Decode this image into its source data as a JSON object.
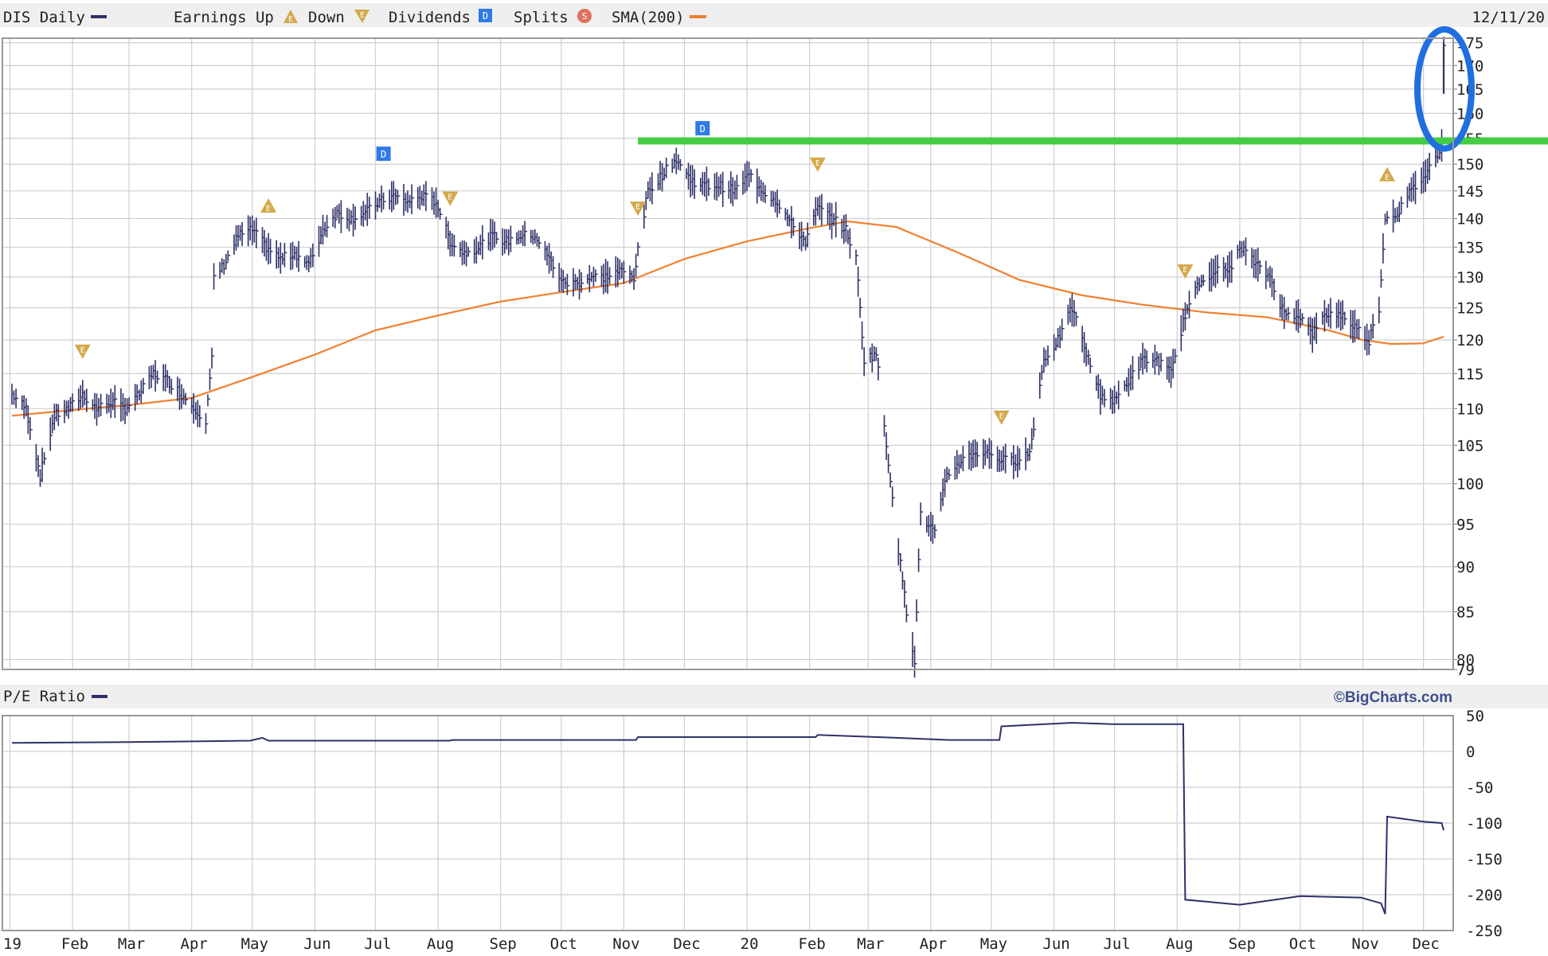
{
  "header": {
    "symbol_label": "DIS Daily",
    "earnings_label": "Earnings Up",
    "down_label": "Down",
    "dividends_label": "Dividends",
    "splits_label": "Splits",
    "sma_label": "SMA(200)",
    "date_label": "12/11/20"
  },
  "pe_panel": {
    "label": "P/E Ratio",
    "copyright": "©BigCharts.com"
  },
  "colors": {
    "price": "#2e3168",
    "sma": "#f08030",
    "grid": "#cfcfcf",
    "earnings_marker": "#d4a84a",
    "dividend_marker": "#2f7be6",
    "split_marker": "#e07060",
    "green_line": "#44cc44",
    "circle": "#1f6fe0",
    "band": "#efefef"
  },
  "icons": {
    "earnings_up": "triangle-up-e-icon",
    "earnings_down": "triangle-down-e-icon",
    "dividend": "d-square-icon",
    "split": "s-circle-icon"
  },
  "chart_data": [
    {
      "type": "line",
      "title": "DIS Daily",
      "x_tick_labels": [
        "19",
        "Feb",
        "Mar",
        "Apr",
        "May",
        "Jun",
        "Jul",
        "Aug",
        "Sep",
        "Oct",
        "Nov",
        "Dec",
        "20",
        "Feb",
        "Mar",
        "Apr",
        "May",
        "Jun",
        "Jul",
        "Aug",
        "Sep",
        "Oct",
        "Nov",
        "Dec"
      ],
      "x_range": [
        "2019-01-02",
        "2020-12-11"
      ],
      "y_scale": "log",
      "y_ticks": [
        79,
        80,
        85,
        90,
        95,
        100,
        105,
        110,
        115,
        120,
        125,
        130,
        135,
        140,
        145,
        150,
        155,
        160,
        165,
        170,
        175
      ],
      "y_tick_labels": [
        "79",
        "80",
        "85",
        "90",
        "95",
        "100",
        "105",
        "110",
        "115",
        "120",
        "125",
        "130",
        "135",
        "140",
        "145",
        "150",
        "155",
        "160",
        "165",
        "170",
        "175"
      ],
      "ylim": [
        79,
        176
      ],
      "grid": true,
      "series": [
        {
          "name": "DIS Daily",
          "style": "price",
          "points": [
            [
              "2019-01-02",
              112
            ],
            [
              "2019-01-09",
              110
            ],
            [
              "2019-01-16",
              101
            ],
            [
              "2019-01-23",
              109
            ],
            [
              "2019-01-30",
              110
            ],
            [
              "2019-02-06",
              112
            ],
            [
              "2019-02-13",
              110
            ],
            [
              "2019-02-20",
              111
            ],
            [
              "2019-02-27",
              110
            ],
            [
              "2019-03-06",
              112
            ],
            [
              "2019-03-13",
              115
            ],
            [
              "2019-03-20",
              114
            ],
            [
              "2019-03-27",
              112
            ],
            [
              "2019-04-03",
              110
            ],
            [
              "2019-04-08",
              108
            ],
            [
              "2019-04-11",
              117
            ],
            [
              "2019-04-12",
              130
            ],
            [
              "2019-04-17",
              132
            ],
            [
              "2019-04-24",
              137
            ],
            [
              "2019-05-01",
              138
            ],
            [
              "2019-05-08",
              135
            ],
            [
              "2019-05-15",
              133
            ],
            [
              "2019-05-22",
              134
            ],
            [
              "2019-05-29",
              132
            ],
            [
              "2019-06-05",
              138
            ],
            [
              "2019-06-12",
              141
            ],
            [
              "2019-06-19",
              140
            ],
            [
              "2019-06-26",
              141
            ],
            [
              "2019-07-03",
              143
            ],
            [
              "2019-07-10",
              144
            ],
            [
              "2019-07-17",
              143
            ],
            [
              "2019-07-24",
              144
            ],
            [
              "2019-07-31",
              143
            ],
            [
              "2019-08-07",
              136
            ],
            [
              "2019-08-14",
              134
            ],
            [
              "2019-08-21",
              135
            ],
            [
              "2019-08-28",
              137
            ],
            [
              "2019-09-04",
              136
            ],
            [
              "2019-09-11",
              137
            ],
            [
              "2019-09-18",
              137
            ],
            [
              "2019-09-25",
              133
            ],
            [
              "2019-10-02",
              129
            ],
            [
              "2019-10-09",
              129
            ],
            [
              "2019-10-16",
              130
            ],
            [
              "2019-10-23",
              130
            ],
            [
              "2019-10-30",
              131
            ],
            [
              "2019-11-06",
              130
            ],
            [
              "2019-11-13",
              145
            ],
            [
              "2019-11-20",
              148
            ],
            [
              "2019-11-27",
              151
            ],
            [
              "2019-12-04",
              147
            ],
            [
              "2019-12-11",
              146
            ],
            [
              "2019-12-18",
              146
            ],
            [
              "2019-12-26",
              145
            ],
            [
              "2020-01-02",
              148
            ],
            [
              "2020-01-09",
              145
            ],
            [
              "2020-01-16",
              143
            ],
            [
              "2020-01-23",
              139
            ],
            [
              "2020-01-30",
              136
            ],
            [
              "2020-02-05",
              142
            ],
            [
              "2020-02-12",
              140
            ],
            [
              "2020-02-19",
              138
            ],
            [
              "2020-02-24",
              133
            ],
            [
              "2020-02-28",
              117
            ],
            [
              "2020-03-05",
              118
            ],
            [
              "2020-03-10",
              105
            ],
            [
              "2020-03-16",
              92
            ],
            [
              "2020-03-20",
              85
            ],
            [
              "2020-03-24",
              80
            ],
            [
              "2020-03-27",
              96
            ],
            [
              "2020-04-03",
              94
            ],
            [
              "2020-04-09",
              101
            ],
            [
              "2020-04-16",
              103
            ],
            [
              "2020-04-23",
              104
            ],
            [
              "2020-04-30",
              104
            ],
            [
              "2020-05-06",
              103
            ],
            [
              "2020-05-13",
              103
            ],
            [
              "2020-05-20",
              104
            ],
            [
              "2020-05-27",
              117
            ],
            [
              "2020-06-03",
              120
            ],
            [
              "2020-06-10",
              125
            ],
            [
              "2020-06-17",
              118
            ],
            [
              "2020-06-24",
              112
            ],
            [
              "2020-07-01",
              111
            ],
            [
              "2020-07-08",
              114
            ],
            [
              "2020-07-15",
              117
            ],
            [
              "2020-07-22",
              117
            ],
            [
              "2020-07-29",
              115
            ],
            [
              "2020-08-05",
              124
            ],
            [
              "2020-08-12",
              129
            ],
            [
              "2020-08-19",
              131
            ],
            [
              "2020-08-26",
              131
            ],
            [
              "2020-09-02",
              135
            ],
            [
              "2020-09-09",
              132
            ],
            [
              "2020-09-16",
              130
            ],
            [
              "2020-09-23",
              124
            ],
            [
              "2020-09-30",
              124
            ],
            [
              "2020-10-07",
              121
            ],
            [
              "2020-10-14",
              124
            ],
            [
              "2020-10-21",
              124
            ],
            [
              "2020-10-28",
              122
            ],
            [
              "2020-11-04",
              120
            ],
            [
              "2020-11-09",
              125
            ],
            [
              "2020-11-12",
              140
            ],
            [
              "2020-11-18",
              141
            ],
            [
              "2020-11-25",
              145
            ],
            [
              "2020-12-02",
              148
            ],
            [
              "2020-12-08",
              152
            ],
            [
              "2020-12-10",
              154
            ],
            [
              "2020-12-11",
              175
            ]
          ]
        },
        {
          "name": "SMA(200)",
          "style": "sma",
          "points": [
            [
              "2019-01-02",
              109
            ],
            [
              "2019-02-01",
              109.8
            ],
            [
              "2019-03-01",
              110.5
            ],
            [
              "2019-04-01",
              111.5
            ],
            [
              "2019-05-01",
              114.5
            ],
            [
              "2019-06-01",
              117.8
            ],
            [
              "2019-07-01",
              121.5
            ],
            [
              "2019-08-01",
              123.8
            ],
            [
              "2019-09-01",
              126
            ],
            [
              "2019-10-01",
              127.5
            ],
            [
              "2019-11-01",
              129
            ],
            [
              "2019-12-01",
              133
            ],
            [
              "2020-01-01",
              136
            ],
            [
              "2020-02-01",
              138.3
            ],
            [
              "2020-02-20",
              139.5
            ],
            [
              "2020-03-15",
              138.5
            ],
            [
              "2020-04-15",
              134
            ],
            [
              "2020-05-15",
              129.5
            ],
            [
              "2020-06-15",
              127
            ],
            [
              "2020-07-15",
              125.5
            ],
            [
              "2020-08-15",
              124.3
            ],
            [
              "2020-09-15",
              123.5
            ],
            [
              "2020-10-15",
              121.5
            ],
            [
              "2020-11-01",
              120
            ],
            [
              "2020-11-15",
              119.4
            ],
            [
              "2020-12-01",
              119.5
            ],
            [
              "2020-12-11",
              120.5
            ]
          ]
        }
      ],
      "earnings_markers": [
        {
          "date": "2019-02-06",
          "direction": "down"
        },
        {
          "date": "2019-05-09",
          "direction": "up"
        },
        {
          "date": "2019-08-07",
          "direction": "down"
        },
        {
          "date": "2019-11-08",
          "direction": "down"
        },
        {
          "date": "2020-02-05",
          "direction": "down"
        },
        {
          "date": "2020-05-06",
          "direction": "down"
        },
        {
          "date": "2020-08-05",
          "direction": "down"
        },
        {
          "date": "2020-11-13",
          "direction": "up"
        }
      ],
      "dividend_markers": [
        {
          "date": "2019-07-05",
          "price": 152
        },
        {
          "date": "2019-12-10",
          "price": 157
        }
      ],
      "annotations": [
        {
          "type": "horizontal_line",
          "price": 154.5,
          "from": "2019-11-08",
          "color": "green"
        },
        {
          "type": "ellipse",
          "center_date": "2020-12-11",
          "price_low": 153,
          "price_high": 178,
          "color": "blue"
        }
      ]
    },
    {
      "type": "line",
      "title": "P/E Ratio",
      "x_tick_labels": [
        "19",
        "Feb",
        "Mar",
        "Apr",
        "May",
        "Jun",
        "Jul",
        "Aug",
        "Sep",
        "Oct",
        "Nov",
        "Dec",
        "20",
        "Feb",
        "Mar",
        "Apr",
        "May",
        "Jun",
        "Jul",
        "Aug",
        "Sep",
        "Oct",
        "Nov",
        "Dec"
      ],
      "y_ticks": [
        50,
        0,
        -50,
        -100,
        -150,
        -200,
        -250
      ],
      "y_tick_labels": [
        "50",
        "0",
        "-50",
        "-100",
        "-150",
        "-200",
        "-250"
      ],
      "ylim": [
        -250,
        50
      ],
      "grid": true,
      "series": [
        {
          "name": "P/E Ratio",
          "points": [
            [
              "2019-01-02",
              12
            ],
            [
              "2019-03-01",
              13
            ],
            [
              "2019-04-30",
              15
            ],
            [
              "2019-05-06",
              19
            ],
            [
              "2019-05-09",
              15
            ],
            [
              "2019-08-07",
              15
            ],
            [
              "2019-08-08",
              16
            ],
            [
              "2019-11-07",
              16
            ],
            [
              "2019-11-08",
              20
            ],
            [
              "2020-02-04",
              20
            ],
            [
              "2020-02-05",
              23
            ],
            [
              "2020-03-15",
              19
            ],
            [
              "2020-04-10",
              16
            ],
            [
              "2020-05-05",
              16
            ],
            [
              "2020-05-06",
              35
            ],
            [
              "2020-06-10",
              40
            ],
            [
              "2020-07-01",
              38
            ],
            [
              "2020-08-04",
              38
            ],
            [
              "2020-08-05",
              -207
            ],
            [
              "2020-09-01",
              -214
            ],
            [
              "2020-10-01",
              -202
            ],
            [
              "2020-10-31",
              -204
            ],
            [
              "2020-11-10",
              -212
            ],
            [
              "2020-11-12",
              -227
            ],
            [
              "2020-11-13",
              -91
            ],
            [
              "2020-12-01",
              -98
            ],
            [
              "2020-12-10",
              -100
            ],
            [
              "2020-12-11",
              -110
            ]
          ]
        }
      ]
    }
  ]
}
